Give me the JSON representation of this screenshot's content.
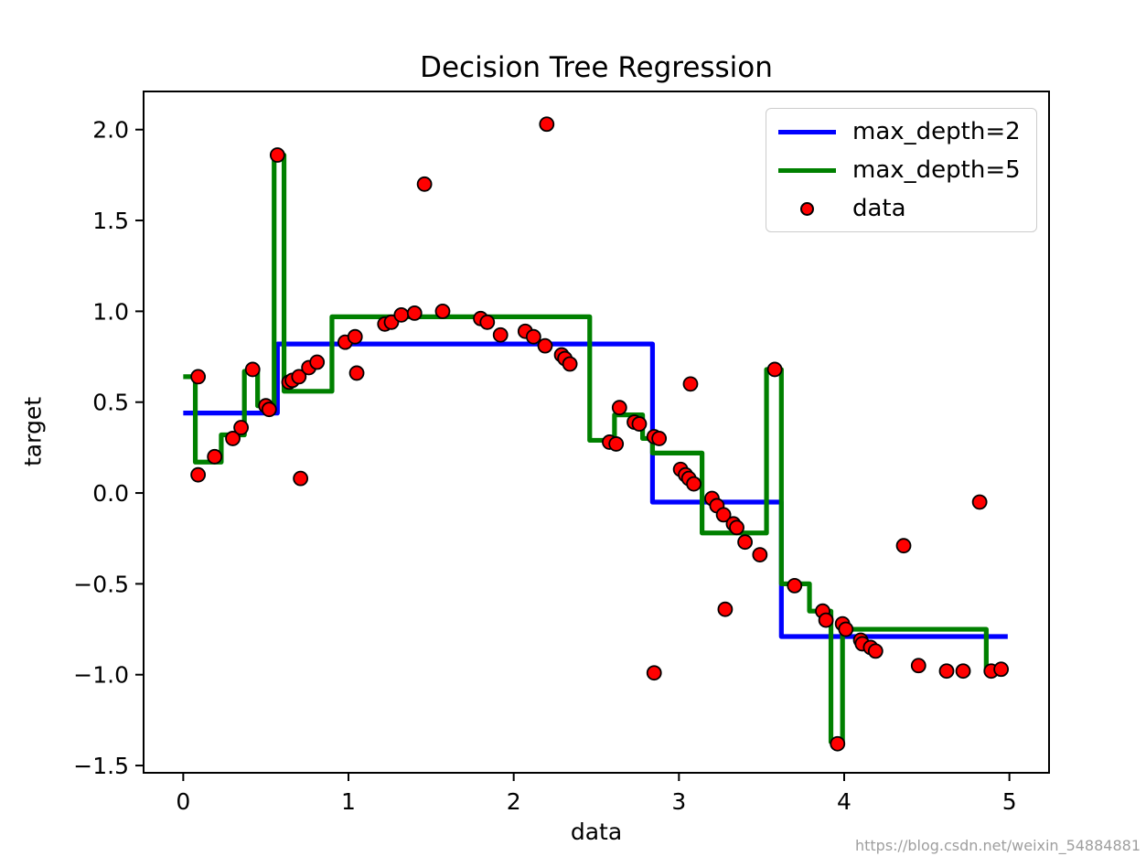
{
  "footer": {
    "watermark": "https://blog.csdn.net/weixin_54884881"
  },
  "chart_data": {
    "type": "line",
    "title": "Decision Tree Regression",
    "xlabel": "data",
    "ylabel": "target",
    "xlim": [
      -0.24,
      5.24
    ],
    "ylim": [
      -1.54,
      2.21
    ],
    "grid": false,
    "background": "#ffffff",
    "xticks": [
      {
        "value": 0,
        "label": "0"
      },
      {
        "value": 1,
        "label": "1"
      },
      {
        "value": 2,
        "label": "2"
      },
      {
        "value": 3,
        "label": "3"
      },
      {
        "value": 4,
        "label": "4"
      },
      {
        "value": 5,
        "label": "5"
      }
    ],
    "yticks": [
      {
        "value": 2.0,
        "label": "2.0"
      },
      {
        "value": 1.5,
        "label": "1.5"
      },
      {
        "value": 1.0,
        "label": "1.0"
      },
      {
        "value": 0.5,
        "label": "0.5"
      },
      {
        "value": 0.0,
        "label": "0.0"
      },
      {
        "value": -0.5,
        "label": "−0.5"
      },
      {
        "value": -1.0,
        "label": "−1.0"
      },
      {
        "value": -1.5,
        "label": "−1.5"
      }
    ],
    "legend": {
      "position": "upper right",
      "entries": [
        {
          "label": "max_depth=2",
          "marker": "line",
          "color": "#0000ff"
        },
        {
          "label": "max_depth=5",
          "marker": "line",
          "color": "#008000"
        },
        {
          "label": "data",
          "marker": "dot",
          "color": "#ff0000"
        }
      ]
    },
    "series": [
      {
        "name": "max_depth=2",
        "type": "step",
        "color": "#0000ff",
        "breaks": [
          0.0,
          0.57,
          2.84,
          3.62
        ],
        "levels": [
          0.44,
          0.82,
          -0.05,
          -0.79
        ],
        "x_end": 4.99
      },
      {
        "name": "max_depth=5",
        "type": "step",
        "color": "#008000",
        "breaks": [
          0.0,
          0.073,
          0.23,
          0.37,
          0.45,
          0.55,
          0.61,
          0.9,
          2.46,
          2.61,
          2.78,
          2.84,
          3.14,
          3.53,
          3.62,
          3.79,
          3.92,
          3.99,
          4.86
        ],
        "levels": [
          0.64,
          0.17,
          0.32,
          0.67,
          0.48,
          1.86,
          0.56,
          0.97,
          0.29,
          0.43,
          0.3,
          0.22,
          -0.22,
          0.68,
          -0.5,
          -0.65,
          -1.37,
          -0.75,
          -0.97
        ],
        "x_end": 4.99
      },
      {
        "name": "data",
        "type": "scatter",
        "color": "#ff0000",
        "edge": "#000000",
        "points": [
          [
            0.09,
            0.64
          ],
          [
            0.09,
            0.1
          ],
          [
            0.19,
            0.2
          ],
          [
            0.3,
            0.3
          ],
          [
            0.35,
            0.36
          ],
          [
            0.42,
            0.68
          ],
          [
            0.5,
            0.48
          ],
          [
            0.52,
            0.46
          ],
          [
            0.57,
            1.86
          ],
          [
            0.64,
            0.61
          ],
          [
            0.66,
            0.62
          ],
          [
            0.7,
            0.64
          ],
          [
            0.71,
            0.08
          ],
          [
            0.76,
            0.69
          ],
          [
            0.81,
            0.72
          ],
          [
            0.98,
            0.83
          ],
          [
            1.04,
            0.86
          ],
          [
            1.05,
            0.66
          ],
          [
            1.22,
            0.93
          ],
          [
            1.26,
            0.94
          ],
          [
            1.32,
            0.98
          ],
          [
            1.4,
            0.99
          ],
          [
            1.46,
            1.7
          ],
          [
            1.57,
            1.0
          ],
          [
            1.8,
            0.96
          ],
          [
            1.84,
            0.94
          ],
          [
            1.92,
            0.87
          ],
          [
            2.07,
            0.89
          ],
          [
            2.12,
            0.86
          ],
          [
            2.19,
            0.81
          ],
          [
            2.2,
            2.03
          ],
          [
            2.29,
            0.76
          ],
          [
            2.31,
            0.74
          ],
          [
            2.34,
            0.71
          ],
          [
            2.58,
            0.28
          ],
          [
            2.62,
            0.27
          ],
          [
            2.64,
            0.47
          ],
          [
            2.73,
            0.39
          ],
          [
            2.76,
            0.38
          ],
          [
            2.85,
            0.31
          ],
          [
            2.88,
            0.3
          ],
          [
            2.85,
            -0.99
          ],
          [
            3.01,
            0.13
          ],
          [
            3.04,
            0.1
          ],
          [
            3.06,
            0.08
          ],
          [
            3.09,
            0.05
          ],
          [
            3.07,
            0.6
          ],
          [
            3.2,
            -0.03
          ],
          [
            3.23,
            -0.07
          ],
          [
            3.27,
            -0.12
          ],
          [
            3.28,
            -0.64
          ],
          [
            3.33,
            -0.17
          ],
          [
            3.35,
            -0.19
          ],
          [
            3.4,
            -0.27
          ],
          [
            3.49,
            -0.34
          ],
          [
            3.58,
            0.68
          ],
          [
            3.7,
            -0.51
          ],
          [
            3.87,
            -0.65
          ],
          [
            3.89,
            -0.7
          ],
          [
            3.96,
            -1.38
          ],
          [
            3.99,
            -0.72
          ],
          [
            4.01,
            -0.75
          ],
          [
            4.1,
            -0.81
          ],
          [
            4.11,
            -0.83
          ],
          [
            4.16,
            -0.85
          ],
          [
            4.19,
            -0.87
          ],
          [
            4.36,
            -0.29
          ],
          [
            4.45,
            -0.95
          ],
          [
            4.62,
            -0.98
          ],
          [
            4.72,
            -0.98
          ],
          [
            4.82,
            -0.05
          ],
          [
            4.89,
            -0.98
          ],
          [
            4.95,
            -0.97
          ]
        ]
      }
    ]
  }
}
